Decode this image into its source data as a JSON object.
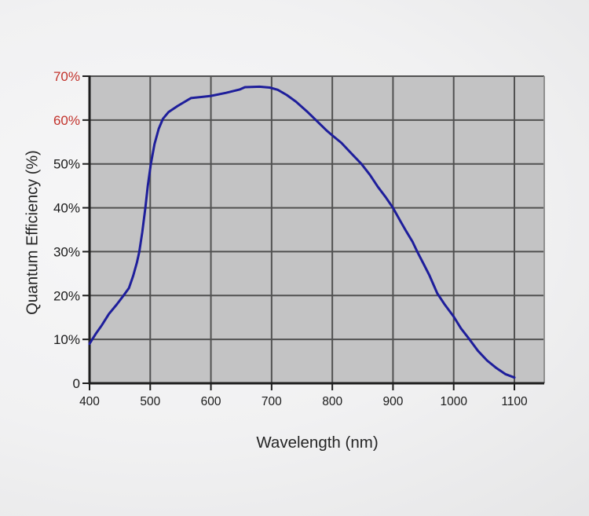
{
  "chart_data": {
    "type": "line",
    "title": "",
    "xlabel": "Wavelength (nm)",
    "ylabel": "Quantum Efficiency (%)",
    "xlim": [
      400,
      1150
    ],
    "ylim": [
      0,
      70
    ],
    "grid": true,
    "legend": "none",
    "x_ticks": [
      {
        "value": 400,
        "label": "400"
      },
      {
        "value": 500,
        "label": "500"
      },
      {
        "value": 600,
        "label": "600"
      },
      {
        "value": 700,
        "label": "700"
      },
      {
        "value": 800,
        "label": "800"
      },
      {
        "value": 900,
        "label": "900"
      },
      {
        "value": 1000,
        "label": "1000"
      },
      {
        "value": 1100,
        "label": "1100"
      }
    ],
    "y_ticks": [
      {
        "value": 0,
        "label": "0",
        "color": "#1a1a1a"
      },
      {
        "value": 10,
        "label": "10%",
        "color": "#1a1a1a"
      },
      {
        "value": 20,
        "label": "20%",
        "color": "#1a1a1a"
      },
      {
        "value": 30,
        "label": "30%",
        "color": "#1a1a1a"
      },
      {
        "value": 40,
        "label": "40%",
        "color": "#1a1a1a"
      },
      {
        "value": 50,
        "label": "50%",
        "color": "#1a1a1a"
      },
      {
        "value": 60,
        "label": "60%",
        "color": "#c2322b"
      },
      {
        "value": 70,
        "label": "70%",
        "color": "#c2322b"
      }
    ],
    "series": [
      {
        "name": "Quantum efficiency",
        "color": "#1e1e9b",
        "points": [
          [
            400,
            9.0
          ],
          [
            410,
            11.2
          ],
          [
            420,
            13.2
          ],
          [
            432,
            15.8
          ],
          [
            445,
            18.0
          ],
          [
            456,
            20.0
          ],
          [
            465,
            21.7
          ],
          [
            472,
            24.5
          ],
          [
            478,
            27.5
          ],
          [
            482,
            30.0
          ],
          [
            487,
            34.5
          ],
          [
            492,
            40.0
          ],
          [
            496,
            45.0
          ],
          [
            501,
            50.0
          ],
          [
            507,
            54.5
          ],
          [
            514,
            58.0
          ],
          [
            521,
            60.3
          ],
          [
            530,
            61.8
          ],
          [
            545,
            63.2
          ],
          [
            567,
            65.0
          ],
          [
            600,
            65.5
          ],
          [
            625,
            66.2
          ],
          [
            648,
            67.0
          ],
          [
            656,
            67.5
          ],
          [
            680,
            67.6
          ],
          [
            697,
            67.4
          ],
          [
            710,
            66.9
          ],
          [
            725,
            65.7
          ],
          [
            740,
            64.2
          ],
          [
            758,
            62.0
          ],
          [
            773,
            60.0
          ],
          [
            790,
            57.7
          ],
          [
            800,
            56.5
          ],
          [
            815,
            54.8
          ],
          [
            832,
            52.3
          ],
          [
            848,
            50.0
          ],
          [
            862,
            47.5
          ],
          [
            875,
            44.8
          ],
          [
            888,
            42.4
          ],
          [
            900,
            40.0
          ],
          [
            912,
            37.0
          ],
          [
            922,
            34.6
          ],
          [
            932,
            32.3
          ],
          [
            940,
            30.0
          ],
          [
            950,
            27.3
          ],
          [
            960,
            24.6
          ],
          [
            973,
            20.5
          ],
          [
            985,
            18.0
          ],
          [
            1000,
            15.2
          ],
          [
            1012,
            12.5
          ],
          [
            1026,
            10.0
          ],
          [
            1040,
            7.4
          ],
          [
            1055,
            5.2
          ],
          [
            1070,
            3.5
          ],
          [
            1085,
            2.1
          ],
          [
            1100,
            1.3
          ]
        ]
      }
    ],
    "colors": {
      "plot_background": "#c3c3c4",
      "gridline": "#515151",
      "axis": "#1e1e1e",
      "plot_right_border": "#8f8f8f",
      "curve": "#1e1e9b",
      "red_tick_label": "#c2322b",
      "tick_label": "#1a1a1a"
    }
  }
}
